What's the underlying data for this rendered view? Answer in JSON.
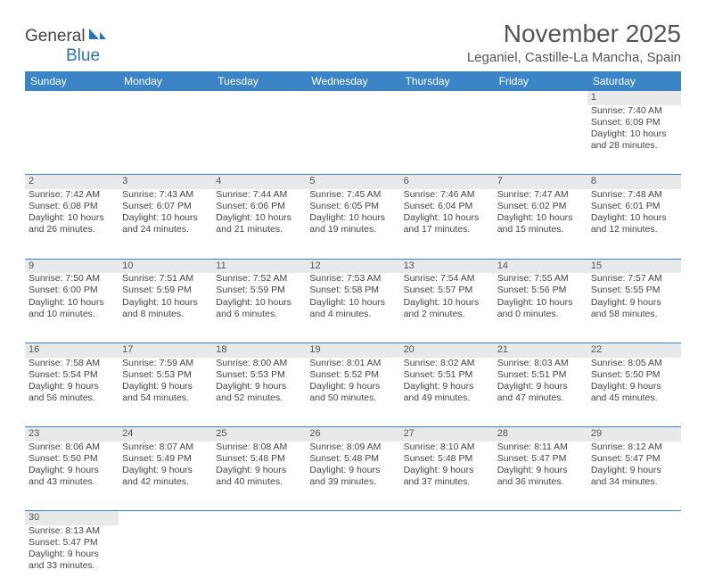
{
  "logo": {
    "general": "General",
    "blue": "Blue"
  },
  "title": "November 2025",
  "location": "Leganiel, Castille-La Mancha, Spain",
  "header_bg": "#3b85c6",
  "header_fg": "#ffffff",
  "daynum_bg": "#e9e9e9",
  "border_color": "#3b85c6",
  "days": [
    "Sunday",
    "Monday",
    "Tuesday",
    "Wednesday",
    "Thursday",
    "Friday",
    "Saturday"
  ],
  "weeks": [
    [
      null,
      null,
      null,
      null,
      null,
      null,
      {
        "n": "1",
        "sr": "7:40 AM",
        "ss": "6:09 PM",
        "dl": "10 hours and 28 minutes."
      }
    ],
    [
      {
        "n": "2",
        "sr": "7:42 AM",
        "ss": "6:08 PM",
        "dl": "10 hours and 26 minutes."
      },
      {
        "n": "3",
        "sr": "7:43 AM",
        "ss": "6:07 PM",
        "dl": "10 hours and 24 minutes."
      },
      {
        "n": "4",
        "sr": "7:44 AM",
        "ss": "6:06 PM",
        "dl": "10 hours and 21 minutes."
      },
      {
        "n": "5",
        "sr": "7:45 AM",
        "ss": "6:05 PM",
        "dl": "10 hours and 19 minutes."
      },
      {
        "n": "6",
        "sr": "7:46 AM",
        "ss": "6:04 PM",
        "dl": "10 hours and 17 minutes."
      },
      {
        "n": "7",
        "sr": "7:47 AM",
        "ss": "6:02 PM",
        "dl": "10 hours and 15 minutes."
      },
      {
        "n": "8",
        "sr": "7:48 AM",
        "ss": "6:01 PM",
        "dl": "10 hours and 12 minutes."
      }
    ],
    [
      {
        "n": "9",
        "sr": "7:50 AM",
        "ss": "6:00 PM",
        "dl": "10 hours and 10 minutes."
      },
      {
        "n": "10",
        "sr": "7:51 AM",
        "ss": "5:59 PM",
        "dl": "10 hours and 8 minutes."
      },
      {
        "n": "11",
        "sr": "7:52 AM",
        "ss": "5:59 PM",
        "dl": "10 hours and 6 minutes."
      },
      {
        "n": "12",
        "sr": "7:53 AM",
        "ss": "5:58 PM",
        "dl": "10 hours and 4 minutes."
      },
      {
        "n": "13",
        "sr": "7:54 AM",
        "ss": "5:57 PM",
        "dl": "10 hours and 2 minutes."
      },
      {
        "n": "14",
        "sr": "7:55 AM",
        "ss": "5:56 PM",
        "dl": "10 hours and 0 minutes."
      },
      {
        "n": "15",
        "sr": "7:57 AM",
        "ss": "5:55 PM",
        "dl": "9 hours and 58 minutes."
      }
    ],
    [
      {
        "n": "16",
        "sr": "7:58 AM",
        "ss": "5:54 PM",
        "dl": "9 hours and 56 minutes."
      },
      {
        "n": "17",
        "sr": "7:59 AM",
        "ss": "5:53 PM",
        "dl": "9 hours and 54 minutes."
      },
      {
        "n": "18",
        "sr": "8:00 AM",
        "ss": "5:53 PM",
        "dl": "9 hours and 52 minutes."
      },
      {
        "n": "19",
        "sr": "8:01 AM",
        "ss": "5:52 PM",
        "dl": "9 hours and 50 minutes."
      },
      {
        "n": "20",
        "sr": "8:02 AM",
        "ss": "5:51 PM",
        "dl": "9 hours and 49 minutes."
      },
      {
        "n": "21",
        "sr": "8:03 AM",
        "ss": "5:51 PM",
        "dl": "9 hours and 47 minutes."
      },
      {
        "n": "22",
        "sr": "8:05 AM",
        "ss": "5:50 PM",
        "dl": "9 hours and 45 minutes."
      }
    ],
    [
      {
        "n": "23",
        "sr": "8:06 AM",
        "ss": "5:50 PM",
        "dl": "9 hours and 43 minutes."
      },
      {
        "n": "24",
        "sr": "8:07 AM",
        "ss": "5:49 PM",
        "dl": "9 hours and 42 minutes."
      },
      {
        "n": "25",
        "sr": "8:08 AM",
        "ss": "5:48 PM",
        "dl": "9 hours and 40 minutes."
      },
      {
        "n": "26",
        "sr": "8:09 AM",
        "ss": "5:48 PM",
        "dl": "9 hours and 39 minutes."
      },
      {
        "n": "27",
        "sr": "8:10 AM",
        "ss": "5:48 PM",
        "dl": "9 hours and 37 minutes."
      },
      {
        "n": "28",
        "sr": "8:11 AM",
        "ss": "5:47 PM",
        "dl": "9 hours and 36 minutes."
      },
      {
        "n": "29",
        "sr": "8:12 AM",
        "ss": "5:47 PM",
        "dl": "9 hours and 34 minutes."
      }
    ],
    [
      {
        "n": "30",
        "sr": "8:13 AM",
        "ss": "5:47 PM",
        "dl": "9 hours and 33 minutes."
      },
      null,
      null,
      null,
      null,
      null,
      null
    ]
  ],
  "labels": {
    "sunrise": "Sunrise: ",
    "sunset": "Sunset: ",
    "daylight": "Daylight: "
  }
}
